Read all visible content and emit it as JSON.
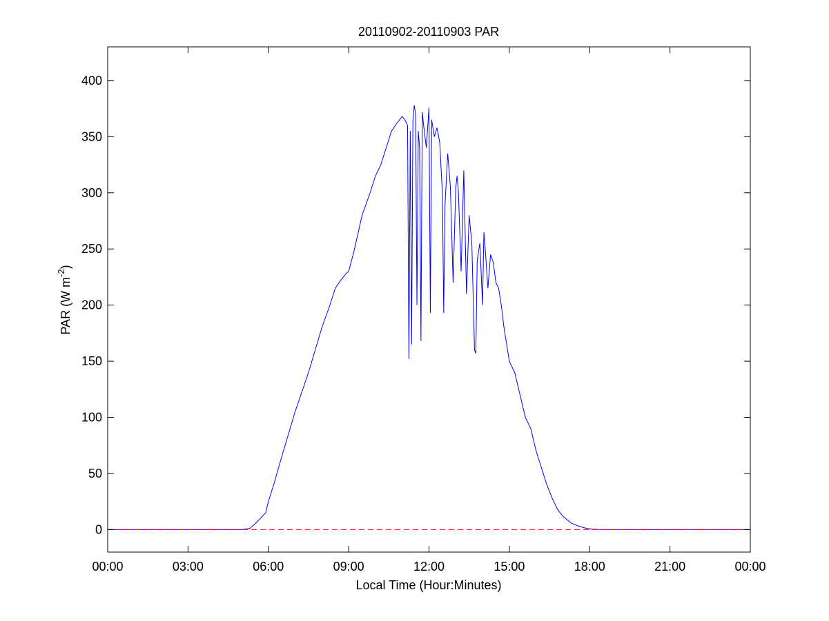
{
  "chart_data": {
    "type": "line",
    "title": "20110902-20110903 PAR",
    "xlabel": "Local Time (Hour:Minutes)",
    "ylabel_main": "PAR (W m",
    "ylabel_sup": "-2",
    "ylabel_close": ")",
    "xlim": [
      0,
      24
    ],
    "ylim": [
      -20,
      430
    ],
    "x_ticks": [
      0,
      3,
      6,
      9,
      12,
      15,
      18,
      21,
      24
    ],
    "x_tick_labels": [
      "00:00",
      "03:00",
      "06:00",
      "09:00",
      "12:00",
      "15:00",
      "18:00",
      "21:00",
      "00:00"
    ],
    "y_ticks": [
      0,
      50,
      100,
      150,
      200,
      250,
      300,
      350,
      400
    ],
    "y_tick_labels": [
      "0",
      "50",
      "100",
      "150",
      "200",
      "250",
      "300",
      "350",
      "400"
    ],
    "grid": false,
    "series": [
      {
        "line_color": "#0000ff",
        "line_style": "solid",
        "x": [
          0,
          5.0,
          5.3,
          5.5,
          5.7,
          5.9,
          6.0,
          6.2,
          6.5,
          7.0,
          7.5,
          8.0,
          8.3,
          8.5,
          8.7,
          8.9,
          9.0,
          9.2,
          9.5,
          9.8,
          10.0,
          10.2,
          10.4,
          10.6,
          10.8,
          11.0,
          11.1,
          11.2,
          11.25,
          11.3,
          11.35,
          11.4,
          11.45,
          11.5,
          11.55,
          11.6,
          11.65,
          11.7,
          11.75,
          11.8,
          11.9,
          12.0,
          12.05,
          12.1,
          12.2,
          12.3,
          12.4,
          12.5,
          12.55,
          12.6,
          12.7,
          12.8,
          12.9,
          13.0,
          13.05,
          13.1,
          13.2,
          13.3,
          13.4,
          13.5,
          13.6,
          13.7,
          13.75,
          13.8,
          13.9,
          14.0,
          14.05,
          14.1,
          14.2,
          14.3,
          14.4,
          14.5,
          14.6,
          14.7,
          14.8,
          14.9,
          15.0,
          15.2,
          15.4,
          15.6,
          15.8,
          16.0,
          16.2,
          16.4,
          16.6,
          16.8,
          17.0,
          17.3,
          17.6,
          17.9,
          18.1,
          18.3,
          18.5,
          18.7,
          19.0,
          24
        ],
        "y": [
          0,
          0,
          1,
          5,
          10,
          15,
          25,
          40,
          65,
          105,
          140,
          180,
          200,
          215,
          222,
          228,
          230,
          248,
          280,
          300,
          315,
          325,
          340,
          355,
          362,
          368,
          365,
          360,
          152,
          355,
          165,
          365,
          378,
          370,
          200,
          355,
          340,
          168,
          372,
          360,
          340,
          376,
          193,
          365,
          350,
          358,
          345,
          300,
          193,
          290,
          335,
          305,
          220,
          305,
          315,
          300,
          230,
          320,
          210,
          280,
          255,
          160,
          157,
          240,
          255,
          200,
          265,
          250,
          215,
          245,
          238,
          220,
          215,
          200,
          180,
          165,
          150,
          140,
          120,
          100,
          90,
          70,
          55,
          40,
          28,
          18,
          12,
          6,
          3,
          1,
          0.5,
          0.2,
          0.1,
          0,
          0,
          0
        ]
      },
      {
        "line_color": "#ff0000",
        "line_style": "dashed",
        "x": [
          0,
          24
        ],
        "y": [
          0,
          0
        ]
      }
    ]
  }
}
